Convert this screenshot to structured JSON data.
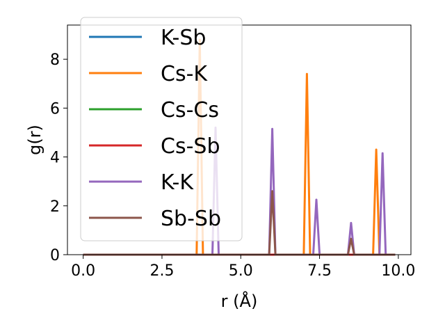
{
  "chart_data": {
    "type": "line",
    "xlabel": "r (Å)",
    "ylabel": "g(r)",
    "xlim": [
      -0.5,
      10.4
    ],
    "ylim": [
      0,
      9.4
    ],
    "xticks": [
      0.0,
      2.5,
      5.0,
      7.5,
      10.0
    ],
    "xtick_labels": [
      "0.0",
      "2.5",
      "5.0",
      "7.5",
      "10.0"
    ],
    "yticks": [
      0,
      2,
      4,
      6,
      8
    ],
    "ytick_labels": [
      "0",
      "2",
      "4",
      "6",
      "8"
    ],
    "grid": false,
    "legend_position": "upper-left",
    "series": [
      {
        "name": "K-Sb",
        "color": "#1f77b4",
        "x": [
          0.0,
          3.6,
          3.7,
          3.8,
          9.9
        ],
        "y": [
          0,
          0,
          0,
          0,
          0
        ]
      },
      {
        "name": "Cs-K",
        "color": "#ff7f0e",
        "x": [
          0.0,
          3.6,
          3.7,
          3.8,
          7.0,
          7.1,
          7.2,
          9.2,
          9.3,
          9.4,
          9.9
        ],
        "y": [
          0,
          0,
          8.8,
          0,
          0,
          7.4,
          0,
          0,
          4.3,
          0,
          0
        ]
      },
      {
        "name": "Cs-Cs",
        "color": "#2ca02c",
        "x": [
          0.0,
          9.9
        ],
        "y": [
          0,
          0
        ]
      },
      {
        "name": "Cs-Sb",
        "color": "#d62728",
        "x": [
          0.0,
          9.9
        ],
        "y": [
          0,
          0
        ]
      },
      {
        "name": "K-K",
        "color": "#9467bd",
        "x": [
          0.0,
          4.1,
          4.2,
          4.3,
          5.9,
          6.0,
          6.1,
          7.3,
          7.4,
          7.5,
          8.4,
          8.5,
          8.6,
          9.4,
          9.5,
          9.6,
          9.9
        ],
        "y": [
          0,
          0,
          5.2,
          0,
          0,
          5.15,
          0,
          0,
          2.25,
          0,
          0,
          1.3,
          0,
          0,
          4.15,
          0,
          0
        ]
      },
      {
        "name": "Sb-Sb",
        "color": "#8c564b",
        "x": [
          0.0,
          5.9,
          6.0,
          6.1,
          8.4,
          8.5,
          8.6,
          9.9
        ],
        "y": [
          0,
          0,
          2.6,
          0,
          0,
          0.65,
          0,
          0
        ]
      }
    ]
  }
}
